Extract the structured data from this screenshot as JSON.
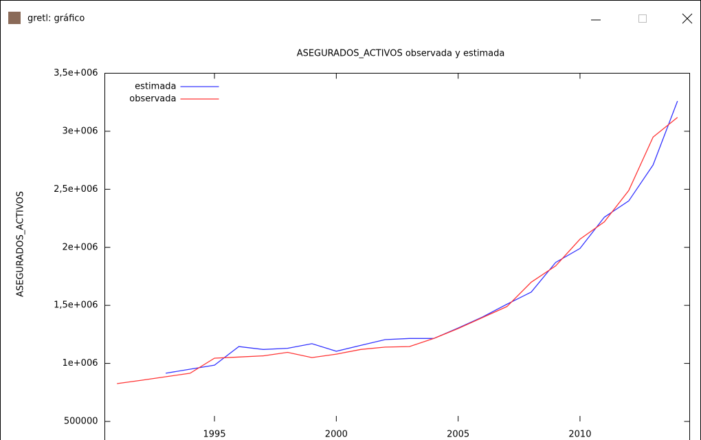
{
  "window": {
    "title": "gretl: gráfico"
  },
  "chart_data": {
    "type": "line",
    "title": "ASEGURADOS_ACTIVOS observada y estimada",
    "y_label": "ASEGURADOS_ACTIVOS",
    "x": [
      1991,
      1992,
      1993,
      1994,
      1995,
      1996,
      1997,
      1998,
      1999,
      2000,
      2001,
      2002,
      2003,
      2004,
      2005,
      2006,
      2007,
      2008,
      2009,
      2010,
      2011,
      2012,
      2013,
      2014
    ],
    "series": [
      {
        "name": "estimada",
        "color": "#3333ff",
        "values": [
          null,
          null,
          915000,
          950000,
          985000,
          1145000,
          1120000,
          1130000,
          1170000,
          1105000,
          1155000,
          1205000,
          1215000,
          1215000,
          1305000,
          1400000,
          1510000,
          1615000,
          1870000,
          1990000,
          2260000,
          2400000,
          2710000,
          3260000
        ]
      },
      {
        "name": "observada",
        "color": "#ff3333",
        "values": [
          826000,
          855000,
          885000,
          915000,
          1045000,
          1055000,
          1065000,
          1095000,
          1050000,
          1080000,
          1120000,
          1140000,
          1145000,
          1215000,
          1300000,
          1395000,
          1490000,
          1700000,
          1840000,
          2070000,
          2220000,
          2490000,
          2950000,
          3120000
        ]
      }
    ],
    "xlim": [
      1990.5,
      2014.5
    ],
    "xticks": [
      1995,
      2000,
      2005,
      2010
    ],
    "ylim": [
      500000,
      3500000
    ],
    "yticks": [
      500000,
      {
        "value": 1000000,
        "label": "1e+006"
      },
      {
        "value": 1500000,
        "label": "1,5e+006"
      },
      {
        "value": 2000000,
        "label": "2e+006"
      },
      {
        "value": 2500000,
        "label": "2,5e+006"
      },
      {
        "value": 3000000,
        "label": "3e+006"
      },
      {
        "value": 3500000,
        "label": "3,5e+006"
      }
    ],
    "legend": "upper left"
  }
}
